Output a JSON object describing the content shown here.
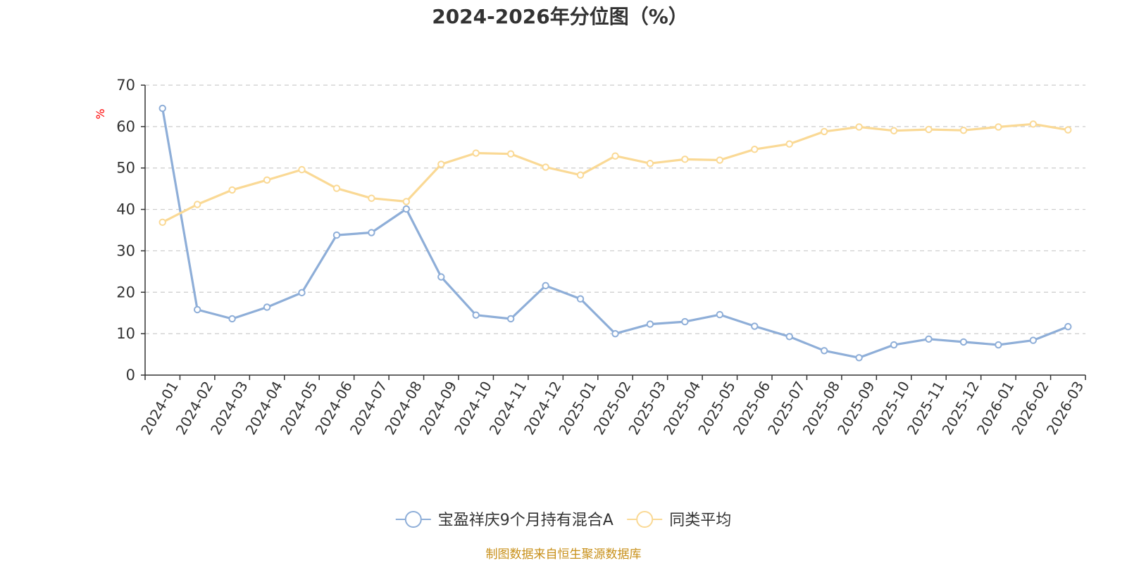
{
  "chart_data": {
    "type": "line",
    "title": "2024-2026年分位图（%）",
    "ylabel": "%",
    "xlabel": "",
    "ylim": [
      0,
      70
    ],
    "yticks": [
      0,
      10,
      20,
      30,
      40,
      50,
      60,
      70
    ],
    "grid": true,
    "legend_position": "bottom-center",
    "categories": [
      "2024-01",
      "2024-02",
      "2024-03",
      "2024-04",
      "2024-05",
      "2024-06",
      "2024-07",
      "2024-08",
      "2024-09",
      "2024-10",
      "2024-11",
      "2024-12",
      "2025-01",
      "2025-02",
      "2025-03",
      "2025-04",
      "2025-05",
      "2025-06",
      "2025-07",
      "2025-08",
      "2025-09",
      "2025-10",
      "2025-11",
      "2025-12",
      "2026-01",
      "2026-02",
      "2026-03"
    ],
    "series": [
      {
        "name": "宝盈祥庆9个月持有混合A",
        "color": "#8eaed8",
        "values": [
          64.4,
          15.8,
          13.6,
          16.4,
          19.9,
          33.8,
          34.4,
          40.1,
          23.7,
          14.5,
          13.6,
          21.6,
          18.4,
          10.0,
          12.3,
          12.9,
          14.6,
          11.8,
          9.3,
          5.9,
          4.2,
          7.3,
          8.7,
          8.0,
          7.3,
          8.4,
          11.7
        ]
      },
      {
        "name": "同类平均",
        "color": "#fad995",
        "values": [
          36.9,
          41.2,
          44.7,
          47.1,
          49.6,
          45.1,
          42.7,
          41.9,
          50.9,
          53.6,
          53.4,
          50.2,
          48.3,
          52.9,
          51.1,
          52.1,
          51.9,
          54.5,
          55.8,
          58.8,
          59.9,
          59.0,
          59.3,
          59.1,
          59.9,
          60.6,
          59.2
        ]
      }
    ]
  },
  "source_text": "制图数据来自恒生聚源数据库",
  "colors": {
    "axis": "#333333",
    "grid": "#cccccc",
    "ylabel": "#ff0000",
    "source": "#c8901a"
  }
}
